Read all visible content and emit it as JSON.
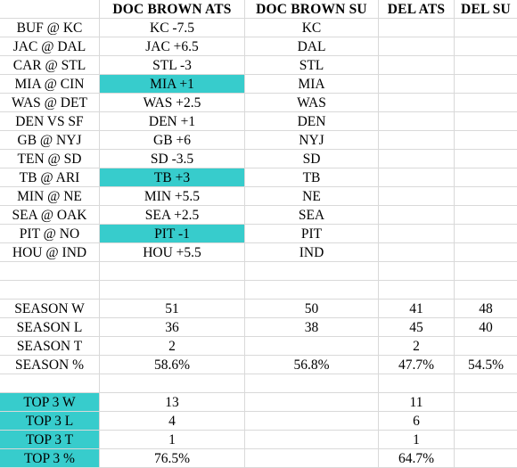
{
  "colors": {
    "highlight": "#37cccc",
    "grid": "#d9d9d9"
  },
  "headers": [
    "",
    "DOC BROWN ATS",
    "DOC BROWN SU",
    "DEL ATS",
    "DEL SU"
  ],
  "rows": [
    [
      "BUF @ KC",
      "KC -7.5",
      "KC",
      "",
      ""
    ],
    [
      "JAC @ DAL",
      "JAC +6.5",
      "DAL",
      "",
      ""
    ],
    [
      "CAR @ STL",
      "STL -3",
      "STL",
      "",
      ""
    ],
    [
      "MIA @ CIN",
      "MIA +1",
      "MIA",
      "",
      ""
    ],
    [
      "WAS @ DET",
      "WAS +2.5",
      "WAS",
      "",
      ""
    ],
    [
      "DEN VS SF",
      "DEN +1",
      "DEN",
      "",
      ""
    ],
    [
      "GB @ NYJ",
      "GB +6",
      "NYJ",
      "",
      ""
    ],
    [
      "TEN @ SD",
      "SD -3.5",
      "SD",
      "",
      ""
    ],
    [
      "TB @ ARI",
      "TB +3",
      "TB",
      "",
      ""
    ],
    [
      "MIN @ NE",
      "MIN +5.5",
      "NE",
      "",
      ""
    ],
    [
      "SEA @ OAK",
      "SEA +2.5",
      "SEA",
      "",
      ""
    ],
    [
      "PIT @ NO",
      "PIT -1",
      "PIT",
      "",
      ""
    ],
    [
      "HOU @ IND",
      "HOU +5.5",
      "IND",
      "",
      ""
    ],
    [
      "",
      "",
      "",
      "",
      ""
    ],
    [
      "",
      "",
      "",
      "",
      ""
    ],
    [
      "SEASON W",
      "51",
      "50",
      "41",
      "48"
    ],
    [
      "SEASON L",
      "36",
      "38",
      "45",
      "40"
    ],
    [
      "SEASON T",
      "2",
      "",
      "2",
      ""
    ],
    [
      "SEASON %",
      "58.6%",
      "56.8%",
      "47.7%",
      "54.5%"
    ],
    [
      "",
      "",
      "",
      "",
      ""
    ],
    [
      "TOP 3 W",
      "13",
      "",
      "11",
      ""
    ],
    [
      "TOP 3 L",
      "4",
      "",
      "6",
      ""
    ],
    [
      "TOP 3 T",
      "1",
      "",
      "1",
      ""
    ],
    [
      "TOP 3 %",
      "76.5%",
      "",
      "64.7%",
      ""
    ]
  ],
  "highlighted_cells": [
    [
      3,
      1
    ],
    [
      8,
      1
    ],
    [
      11,
      1
    ],
    [
      20,
      0
    ],
    [
      21,
      0
    ],
    [
      22,
      0
    ],
    [
      23,
      0
    ]
  ]
}
